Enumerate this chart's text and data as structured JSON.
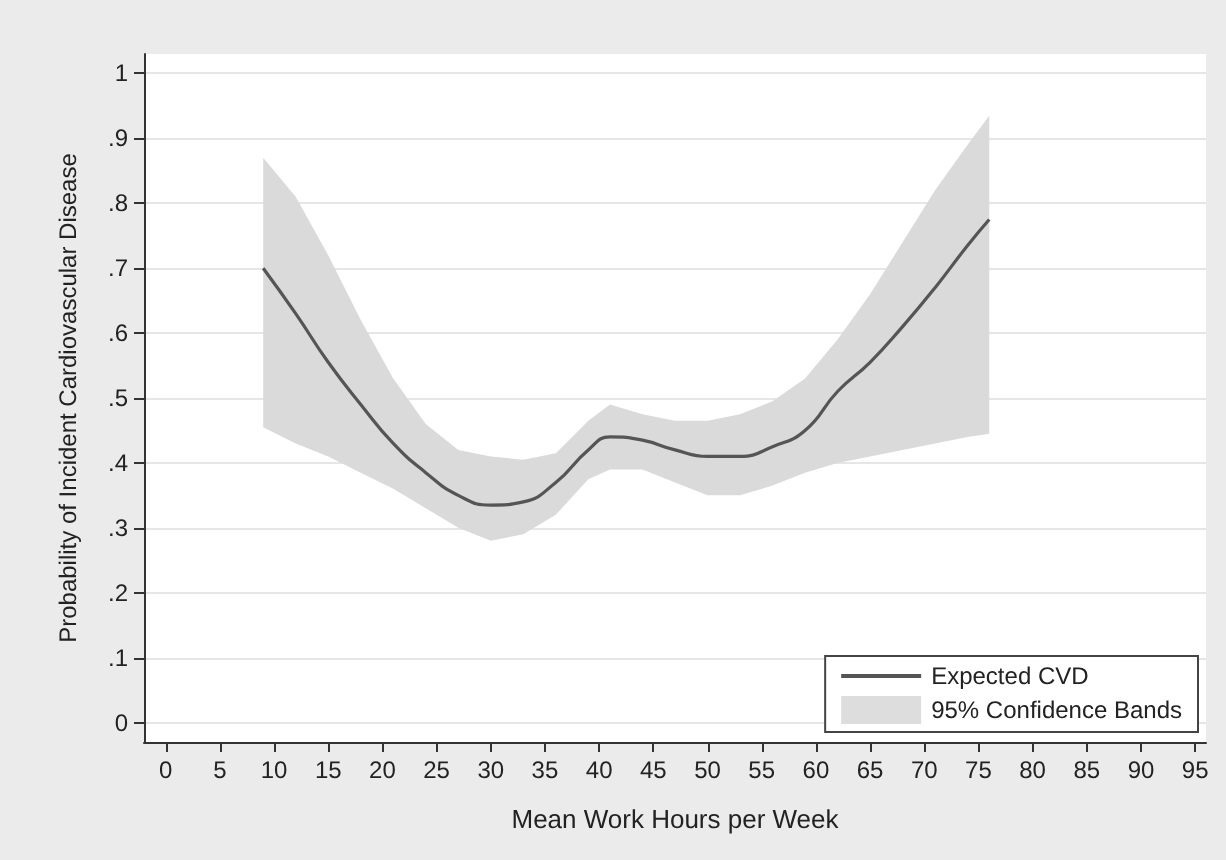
{
  "chart_data": {
    "type": "line",
    "xlabel": "Mean Work Hours per Week",
    "ylabel": "Probability of Incident Cardiovascular Disease",
    "annotations": [
      "95% Confidence Bands"
    ],
    "xlim": [
      -2,
      96
    ],
    "xticks": [
      0,
      5,
      10,
      15,
      20,
      25,
      30,
      35,
      40,
      45,
      50,
      55,
      60,
      65,
      70,
      75,
      80,
      85,
      90,
      95
    ],
    "ylim": [
      -0.03,
      1.03
    ],
    "yticks": [
      {
        "value": 0,
        "label": "0"
      },
      {
        "value": 0.1,
        "label": ".1"
      },
      {
        "value": 0.2,
        "label": ".2"
      },
      {
        "value": 0.3,
        "label": ".3"
      },
      {
        "value": 0.4,
        "label": ".4"
      },
      {
        "value": 0.5,
        "label": ".5"
      },
      {
        "value": 0.6,
        "label": ".6"
      },
      {
        "value": 0.7,
        "label": ".7"
      },
      {
        "value": 0.8,
        "label": ".8"
      },
      {
        "value": 0.9,
        "label": ".9"
      },
      {
        "value": 1,
        "label": "1"
      }
    ],
    "grid": "y",
    "legend": "bottom right",
    "marker": "none",
    "line_style": "solid",
    "series": [
      {
        "name": "Expected CVD",
        "color": "#555555",
        "x": [
          9,
          12,
          15,
          18,
          21,
          24,
          27,
          30,
          33,
          36,
          39,
          41,
          44,
          47,
          50,
          53,
          56,
          59,
          62,
          65,
          68,
          71,
          74,
          76
        ],
        "values": [
          0.7,
          0.63,
          0.555,
          0.49,
          0.43,
          0.385,
          0.35,
          0.335,
          0.34,
          0.37,
          0.42,
          0.44,
          0.435,
          0.42,
          0.41,
          0.41,
          0.425,
          0.45,
          0.51,
          0.555,
          0.61,
          0.67,
          0.735,
          0.775
        ],
        "upper": [
          0.87,
          0.81,
          0.72,
          0.62,
          0.53,
          0.46,
          0.42,
          0.41,
          0.405,
          0.415,
          0.465,
          0.49,
          0.475,
          0.465,
          0.465,
          0.475,
          0.495,
          0.53,
          0.59,
          0.66,
          0.74,
          0.82,
          0.89,
          0.935
        ],
        "lower": [
          0.455,
          0.43,
          0.41,
          0.385,
          0.36,
          0.33,
          0.3,
          0.28,
          0.29,
          0.32,
          0.375,
          0.39,
          0.39,
          0.37,
          0.35,
          0.35,
          0.365,
          0.385,
          0.4,
          0.41,
          0.42,
          0.43,
          0.44,
          0.445
        ]
      }
    ]
  }
}
